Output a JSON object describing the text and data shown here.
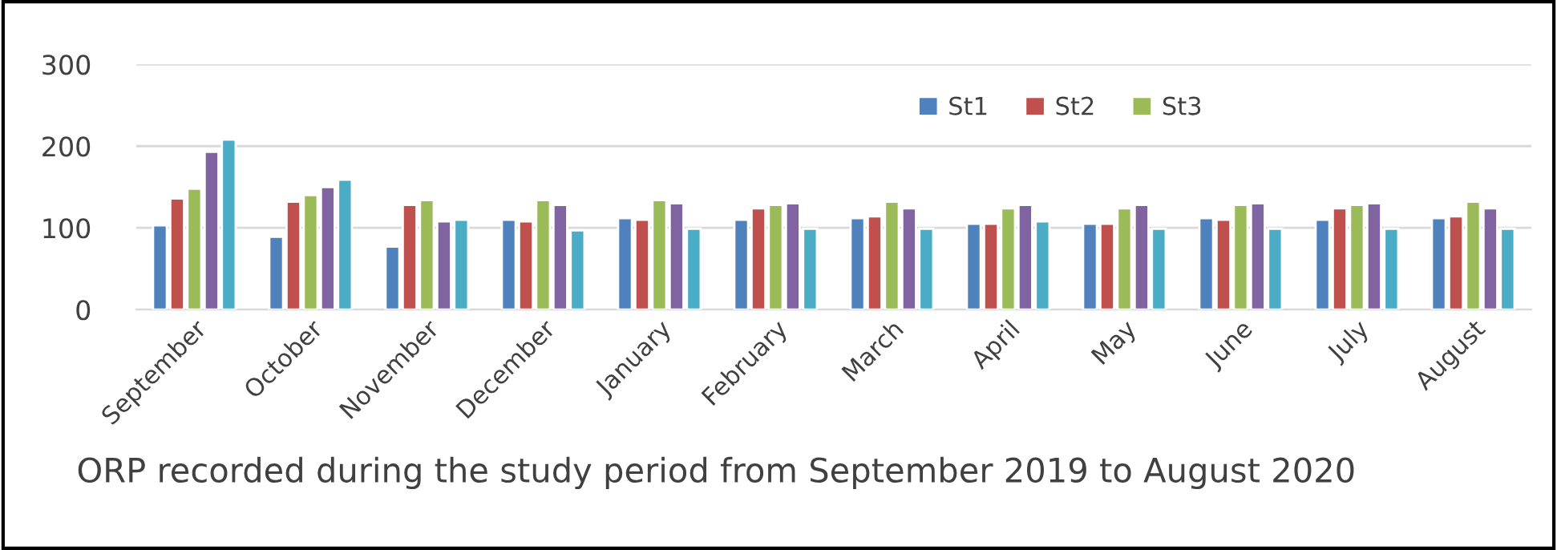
{
  "chart_data": {
    "type": "bar",
    "categories": [
      "September",
      "October",
      "November",
      "December",
      "January",
      "February",
      "March",
      "April",
      "May",
      "June",
      "July",
      "August"
    ],
    "series": [
      {
        "name": "St1",
        "color": "#4f81bd",
        "values": [
          103,
          89,
          77,
          110,
          112,
          110,
          112,
          105,
          105,
          112,
          110,
          112
        ]
      },
      {
        "name": "St2",
        "color": "#c0504d",
        "values": [
          136,
          132,
          128,
          108,
          110,
          124,
          114,
          105,
          105,
          110,
          124,
          114
        ]
      },
      {
        "name": "St3",
        "color": "#9bbb59",
        "values": [
          148,
          140,
          134,
          134,
          134,
          128,
          132,
          124,
          124,
          128,
          128,
          132
        ]
      },
      {
        "color": "#8064a2",
        "values": [
          193,
          150,
          108,
          128,
          130,
          130,
          124,
          128,
          128,
          130,
          130,
          124
        ]
      },
      {
        "color": "#4bacc6",
        "values": [
          208,
          159,
          110,
          97,
          99,
          99,
          99,
          108,
          99,
          99,
          99,
          99
        ]
      }
    ],
    "ylim": [
      0,
      300
    ],
    "yticks": [
      0,
      100,
      200,
      300
    ],
    "grid": "y",
    "legend": "top right",
    "annotations": [
      "ORP recorded during the study period from September 2019 to August 2020"
    ]
  }
}
